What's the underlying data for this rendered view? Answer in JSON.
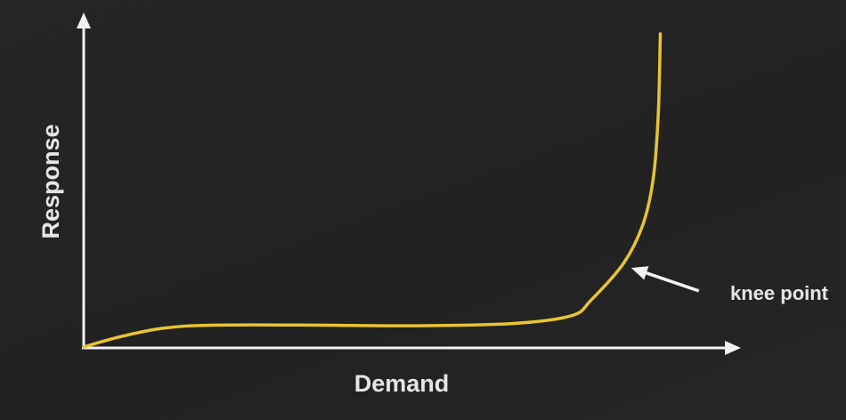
{
  "chart_data": {
    "type": "line",
    "title": "",
    "xlabel": "Demand",
    "ylabel": "Response",
    "xlim": [
      0,
      100
    ],
    "ylim": [
      0,
      100
    ],
    "grid": false,
    "legend": "none",
    "series": [
      {
        "color": "#e8c431",
        "points": [
          {
            "x": 0,
            "y": 0
          },
          {
            "x": 5,
            "y": 3
          },
          {
            "x": 12,
            "y": 6
          },
          {
            "x": 20,
            "y": 7
          },
          {
            "x": 35,
            "y": 7
          },
          {
            "x": 50,
            "y": 6.8
          },
          {
            "x": 65,
            "y": 7.5
          },
          {
            "x": 74,
            "y": 10
          },
          {
            "x": 77,
            "y": 15
          },
          {
            "x": 82,
            "y": 27
          },
          {
            "x": 85,
            "y": 40
          },
          {
            "x": 86.5,
            "y": 55
          },
          {
            "x": 87.2,
            "y": 75
          },
          {
            "x": 87.5,
            "y": 100
          }
        ]
      }
    ],
    "annotations": [
      {
        "text": "knee point",
        "x": 82,
        "y": 27
      }
    ]
  },
  "colors": {
    "background": "#232323",
    "axis": "#f2f2f2",
    "line": "#e8c431",
    "text": "#e6e6e6"
  }
}
